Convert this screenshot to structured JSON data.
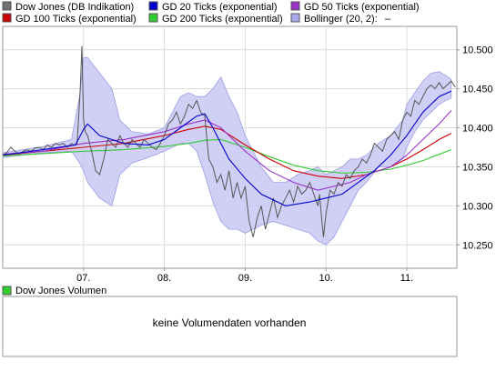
{
  "legend": [
    {
      "label": "Dow Jones (DB Indikation)",
      "color": "#707070"
    },
    {
      "label": "GD 20 Ticks (exponential)",
      "color": "#0000cc"
    },
    {
      "label": "GD 50 Ticks (exponential)",
      "color": "#9933cc"
    },
    {
      "label": "GD 100 Ticks (exponential)",
      "color": "#cc0000"
    },
    {
      "label": "GD 200 Ticks (exponential)",
      "color": "#33cc33"
    },
    {
      "label": "Bollinger (20, 2):",
      "color": "#aaaaee",
      "suffix": "–"
    }
  ],
  "volume_panel": {
    "legend_label": "Dow Jones Volumen",
    "legend_color": "#33cc33",
    "message": "keine Volumendaten vorhanden"
  },
  "chart_data": {
    "type": "line",
    "ylim": [
      10.22,
      10.53
    ],
    "y_ticks": [
      10.25,
      10.3,
      10.35,
      10.4,
      10.45,
      10.5
    ],
    "y_tick_labels": [
      "10.250",
      "10.300",
      "10.350",
      "10.400",
      "10.450",
      "10.500"
    ],
    "x_range": [
      6.0,
      11.62
    ],
    "x_ticks": [
      7,
      8,
      9,
      10,
      11
    ],
    "x_tick_labels": [
      "07.",
      "08.",
      "09.",
      "10.",
      "11."
    ],
    "grid": true,
    "series": [
      {
        "name": "Dow Jones (DB Indikation)",
        "color": "#555555",
        "x": [
          6.0,
          6.05,
          6.1,
          6.15,
          6.2,
          6.25,
          6.3,
          6.35,
          6.4,
          6.45,
          6.5,
          6.55,
          6.6,
          6.65,
          6.7,
          6.75,
          6.8,
          6.85,
          6.88,
          6.92,
          6.96,
          6.98,
          7.0,
          7.02,
          7.05,
          7.1,
          7.15,
          7.2,
          7.25,
          7.3,
          7.35,
          7.4,
          7.45,
          7.5,
          7.55,
          7.6,
          7.65,
          7.7,
          7.75,
          7.8,
          7.85,
          7.9,
          7.95,
          8.0,
          8.05,
          8.1,
          8.15,
          8.2,
          8.25,
          8.3,
          8.35,
          8.4,
          8.45,
          8.5,
          8.55,
          8.6,
          8.65,
          8.7,
          8.75,
          8.8,
          8.85,
          8.9,
          8.95,
          9.0,
          9.05,
          9.1,
          9.15,
          9.2,
          9.25,
          9.3,
          9.35,
          9.4,
          9.45,
          9.5,
          9.55,
          9.6,
          9.65,
          9.7,
          9.75,
          9.8,
          9.85,
          9.9,
          9.92,
          9.95,
          9.97,
          10.0,
          10.05,
          10.1,
          10.15,
          10.2,
          10.25,
          10.3,
          10.35,
          10.4,
          10.45,
          10.5,
          10.55,
          10.6,
          10.65,
          10.7,
          10.75,
          10.8,
          10.85,
          10.9,
          10.95,
          11.0,
          11.05,
          11.1,
          11.15,
          11.2,
          11.25,
          11.3,
          11.35,
          11.4,
          11.45,
          11.5,
          11.55,
          11.6
        ],
        "values": [
          10.365,
          10.368,
          10.375,
          10.37,
          10.366,
          10.37,
          10.372,
          10.37,
          10.374,
          10.375,
          10.372,
          10.378,
          10.375,
          10.38,
          10.378,
          10.38,
          10.375,
          10.38,
          10.378,
          10.38,
          10.45,
          10.505,
          10.41,
          10.395,
          10.39,
          10.37,
          10.345,
          10.34,
          10.36,
          10.385,
          10.38,
          10.375,
          10.39,
          10.38,
          10.375,
          10.385,
          10.38,
          10.375,
          10.385,
          10.38,
          10.375,
          10.372,
          10.38,
          10.39,
          10.405,
          10.41,
          10.42,
          10.405,
          10.415,
          10.43,
          10.425,
          10.435,
          10.42,
          10.415,
          10.36,
          10.35,
          10.33,
          10.34,
          10.32,
          10.345,
          10.31,
          10.33,
          10.31,
          10.325,
          10.28,
          10.26,
          10.285,
          10.3,
          10.27,
          10.29,
          10.31,
          10.285,
          10.3,
          10.31,
          10.32,
          10.305,
          10.325,
          10.315,
          10.32,
          10.33,
          10.315,
          10.3,
          10.315,
          10.28,
          10.26,
          10.29,
          10.32,
          10.315,
          10.33,
          10.325,
          10.34,
          10.335,
          10.345,
          10.35,
          10.36,
          10.355,
          10.365,
          10.38,
          10.375,
          10.37,
          10.385,
          10.39,
          10.395,
          10.385,
          10.41,
          10.42,
          10.415,
          10.435,
          10.43,
          10.44,
          10.45,
          10.455,
          10.45,
          10.458,
          10.45,
          10.455,
          10.46,
          10.452
        ]
      },
      {
        "name": "GD 20 Ticks (exponential)",
        "color": "#0000cc",
        "x": [
          6.0,
          6.5,
          6.9,
          7.0,
          7.05,
          7.2,
          7.5,
          7.8,
          8.0,
          8.2,
          8.4,
          8.5,
          8.6,
          8.8,
          9.0,
          9.2,
          9.5,
          9.8,
          10.0,
          10.2,
          10.4,
          10.6,
          10.8,
          11.0,
          11.2,
          11.4,
          11.55
        ],
        "values": [
          10.365,
          10.372,
          10.378,
          10.398,
          10.405,
          10.39,
          10.38,
          10.378,
          10.385,
          10.4,
          10.415,
          10.418,
          10.4,
          10.36,
          10.335,
          10.315,
          10.3,
          10.305,
          10.31,
          10.315,
          10.33,
          10.345,
          10.365,
          10.39,
          10.42,
          10.44,
          10.447
        ]
      },
      {
        "name": "GD 50 Ticks (exponential)",
        "color": "#9933cc",
        "x": [
          6.0,
          6.5,
          7.0,
          7.5,
          8.0,
          8.3,
          8.5,
          8.7,
          9.0,
          9.3,
          9.6,
          9.9,
          10.1,
          10.3,
          10.5,
          10.8,
          11.0,
          11.2,
          11.4,
          11.55
        ],
        "values": [
          10.366,
          10.37,
          10.38,
          10.385,
          10.395,
          10.405,
          10.41,
          10.4,
          10.37,
          10.345,
          10.33,
          10.32,
          10.325,
          10.33,
          10.34,
          10.35,
          10.365,
          10.385,
          10.405,
          10.422
        ]
      },
      {
        "name": "GD 100 Ticks (exponential)",
        "color": "#cc0000",
        "x": [
          6.0,
          6.5,
          7.0,
          7.5,
          8.0,
          8.3,
          8.5,
          8.7,
          9.0,
          9.3,
          9.6,
          9.9,
          10.2,
          10.5,
          10.8,
          11.0,
          11.2,
          11.4,
          11.55
        ],
        "values": [
          10.365,
          10.37,
          10.375,
          10.38,
          10.39,
          10.398,
          10.402,
          10.398,
          10.378,
          10.36,
          10.345,
          10.338,
          10.335,
          10.34,
          10.35,
          10.36,
          10.372,
          10.385,
          10.393
        ]
      },
      {
        "name": "GD 200 Ticks (exponential)",
        "color": "#33cc33",
        "x": [
          6.0,
          6.5,
          7.0,
          7.5,
          8.0,
          8.3,
          8.5,
          8.7,
          9.0,
          9.3,
          9.6,
          9.9,
          10.2,
          10.5,
          10.8,
          11.0,
          11.2,
          11.4,
          11.55
        ],
        "values": [
          10.364,
          10.367,
          10.37,
          10.372,
          10.376,
          10.38,
          10.384,
          10.385,
          10.375,
          10.363,
          10.352,
          10.345,
          10.342,
          10.343,
          10.347,
          10.352,
          10.358,
          10.366,
          10.372
        ]
      }
    ],
    "bollinger": {
      "name": "Bollinger (20, 2):",
      "color": "#aaaaee",
      "x": [
        6.0,
        6.5,
        6.85,
        6.95,
        7.0,
        7.05,
        7.2,
        7.35,
        7.45,
        7.6,
        7.8,
        8.0,
        8.1,
        8.2,
        8.3,
        8.4,
        8.5,
        8.6,
        8.7,
        8.8,
        8.9,
        9.0,
        9.1,
        9.2,
        9.35,
        9.5,
        9.65,
        9.8,
        9.9,
        10.0,
        10.1,
        10.2,
        10.3,
        10.4,
        10.5,
        10.65,
        10.8,
        10.95,
        11.0,
        11.1,
        11.2,
        11.3,
        11.4,
        11.5,
        11.55
      ],
      "upper": [
        10.368,
        10.376,
        10.385,
        10.44,
        10.49,
        10.49,
        10.47,
        10.45,
        10.41,
        10.395,
        10.392,
        10.4,
        10.42,
        10.44,
        10.445,
        10.44,
        10.44,
        10.45,
        10.465,
        10.44,
        10.42,
        10.39,
        10.37,
        10.35,
        10.33,
        10.33,
        10.34,
        10.345,
        10.35,
        10.34,
        10.345,
        10.35,
        10.36,
        10.36,
        10.365,
        10.38,
        10.39,
        10.41,
        10.43,
        10.445,
        10.46,
        10.47,
        10.472,
        10.466,
        10.462
      ],
      "lower": [
        10.362,
        10.368,
        10.37,
        10.355,
        10.345,
        10.33,
        10.31,
        10.3,
        10.34,
        10.355,
        10.362,
        10.37,
        10.375,
        10.38,
        10.38,
        10.37,
        10.34,
        10.305,
        10.28,
        10.27,
        10.27,
        10.265,
        10.27,
        10.275,
        10.28,
        10.275,
        10.27,
        10.265,
        10.255,
        10.25,
        10.26,
        10.28,
        10.3,
        10.32,
        10.33,
        10.35,
        10.35,
        10.36,
        10.375,
        10.395,
        10.41,
        10.42,
        10.43,
        10.436,
        10.438
      ]
    }
  }
}
